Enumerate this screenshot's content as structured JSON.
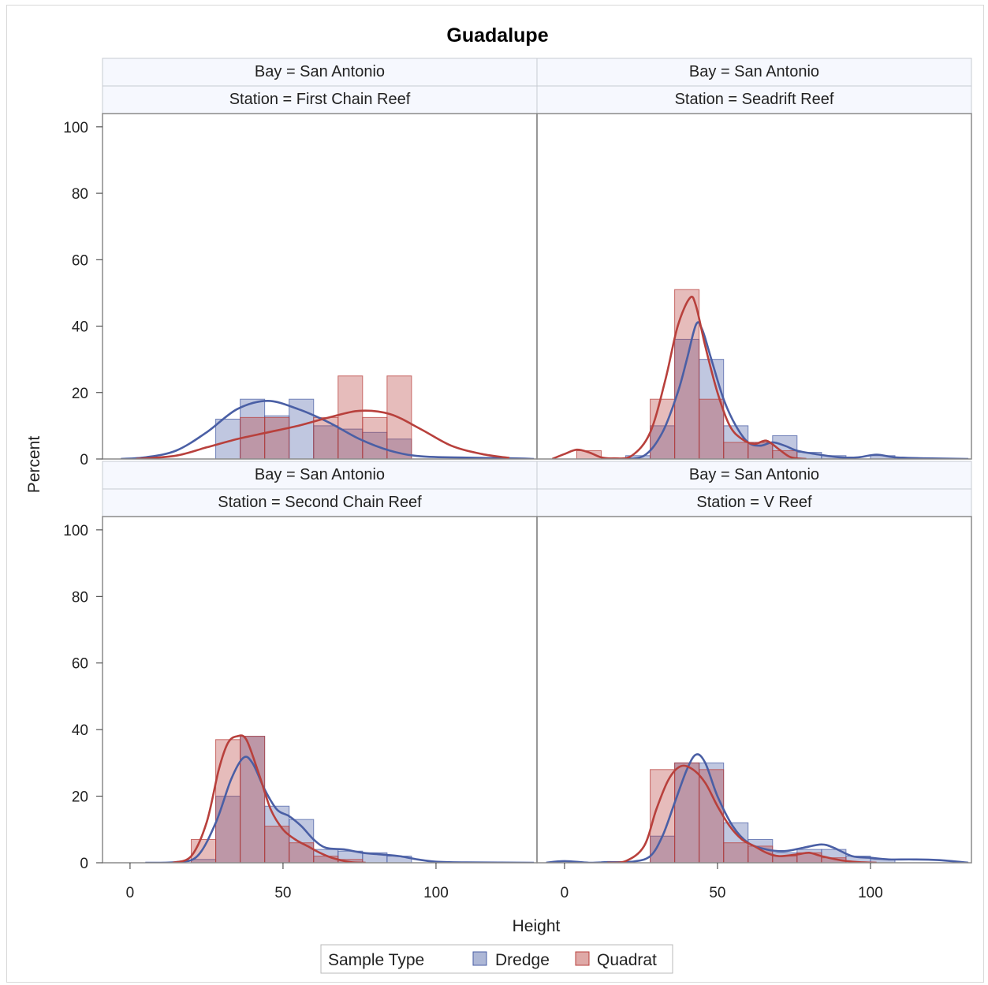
{
  "chart_data": {
    "type": "histogram-panel",
    "title": "Guadalupe",
    "xlabel": "Height",
    "ylabel": "Percent",
    "xlim": [
      -9,
      133
    ],
    "ylim": [
      0,
      104
    ],
    "xticks": [
      "0",
      "50",
      "100"
    ],
    "yticks": [
      "0",
      "20",
      "40",
      "60",
      "80",
      "100"
    ],
    "bin_width": 8,
    "legend": {
      "title": "Sample Type",
      "placement": "bottom",
      "items": [
        {
          "name": "Dredge",
          "color": "#4a5fa5"
        },
        {
          "name": "Quadrat",
          "color": "#b8403c"
        }
      ]
    },
    "panels": [
      {
        "bay": "Bay = San Antonio",
        "station": "Station = First Chain Reef",
        "dredge_bins": [
          [
            28,
            12
          ],
          [
            36,
            18
          ],
          [
            44,
            13
          ],
          [
            52,
            18
          ],
          [
            60,
            10
          ],
          [
            68,
            9
          ],
          [
            76,
            8
          ],
          [
            84,
            6
          ]
        ],
        "quadrat_bins": [
          [
            36,
            12.5
          ],
          [
            44,
            12.5
          ],
          [
            60,
            12.5
          ],
          [
            68,
            25
          ],
          [
            76,
            12.5
          ],
          [
            84,
            25
          ]
        ],
        "dredge_curve": [
          [
            -3,
            0
          ],
          [
            5,
            0.5
          ],
          [
            15,
            2.5
          ],
          [
            25,
            8
          ],
          [
            35,
            15
          ],
          [
            45,
            17.5
          ],
          [
            55,
            15
          ],
          [
            65,
            11
          ],
          [
            75,
            6
          ],
          [
            85,
            2.5
          ],
          [
            95,
            0.8
          ],
          [
            110,
            0.4
          ],
          [
            125,
            0.2
          ],
          [
            132,
            0
          ]
        ],
        "quadrat_curve": [
          [
            2,
            0
          ],
          [
            15,
            1
          ],
          [
            25,
            3.5
          ],
          [
            35,
            6
          ],
          [
            45,
            8
          ],
          [
            55,
            10
          ],
          [
            65,
            12.5
          ],
          [
            75,
            14.5
          ],
          [
            85,
            13.5
          ],
          [
            95,
            9
          ],
          [
            105,
            4
          ],
          [
            115,
            1.5
          ],
          [
            124,
            0.3
          ]
        ]
      },
      {
        "bay": "Bay = San Antonio",
        "station": "Station = Seadrift Reef",
        "dredge_bins": [
          [
            20,
            1
          ],
          [
            28,
            10
          ],
          [
            36,
            36
          ],
          [
            44,
            30
          ],
          [
            52,
            10
          ],
          [
            60,
            5
          ],
          [
            68,
            7
          ],
          [
            76,
            2
          ],
          [
            84,
            1
          ],
          [
            100,
            1
          ]
        ],
        "quadrat_bins": [
          [
            4,
            2.5
          ],
          [
            28,
            18
          ],
          [
            36,
            51
          ],
          [
            44,
            18
          ],
          [
            52,
            5
          ],
          [
            60,
            5
          ],
          [
            68,
            2.5
          ]
        ],
        "dredge_curve": [
          [
            18,
            0
          ],
          [
            26,
            1
          ],
          [
            32,
            8
          ],
          [
            37,
            20
          ],
          [
            40,
            30
          ],
          [
            43,
            40.5
          ],
          [
            45,
            39
          ],
          [
            48,
            30
          ],
          [
            52,
            18
          ],
          [
            56,
            10
          ],
          [
            60,
            5
          ],
          [
            64,
            4
          ],
          [
            68,
            5
          ],
          [
            72,
            4
          ],
          [
            76,
            2.5
          ],
          [
            82,
            1.5
          ],
          [
            90,
            0.5
          ],
          [
            96,
            0.5
          ],
          [
            102,
            1.3
          ],
          [
            108,
            0.5
          ],
          [
            118,
            0.2
          ],
          [
            132,
            0
          ]
        ],
        "quadrat_curve": [
          [
            -4,
            0
          ],
          [
            0,
            1.5
          ],
          [
            4,
            2.8
          ],
          [
            8,
            2
          ],
          [
            12,
            0.5
          ],
          [
            16,
            0.2
          ],
          [
            22,
            1
          ],
          [
            28,
            8
          ],
          [
            33,
            24
          ],
          [
            37,
            40
          ],
          [
            41,
            48.5
          ],
          [
            43,
            46
          ],
          [
            46,
            34
          ],
          [
            50,
            20
          ],
          [
            54,
            10
          ],
          [
            58,
            6
          ],
          [
            62,
            4.5
          ],
          [
            66,
            5.5
          ],
          [
            70,
            3
          ],
          [
            74,
            0.5
          ],
          [
            79,
            0
          ]
        ]
      },
      {
        "bay": "Bay = San Antonio",
        "station": "Station = Second Chain Reef",
        "dredge_bins": [
          [
            20,
            1
          ],
          [
            28,
            20
          ],
          [
            36,
            38
          ],
          [
            44,
            17
          ],
          [
            52,
            13
          ],
          [
            60,
            4
          ],
          [
            68,
            3.5
          ],
          [
            76,
            3
          ],
          [
            84,
            2
          ]
        ],
        "quadrat_bins": [
          [
            20,
            7
          ],
          [
            28,
            37
          ],
          [
            36,
            38
          ],
          [
            44,
            11
          ],
          [
            52,
            6
          ],
          [
            60,
            2
          ],
          [
            68,
            1
          ]
        ],
        "dredge_curve": [
          [
            5,
            0
          ],
          [
            15,
            0.2
          ],
          [
            22,
            2
          ],
          [
            28,
            12
          ],
          [
            33,
            25
          ],
          [
            37,
            31.5
          ],
          [
            40,
            30
          ],
          [
            44,
            22
          ],
          [
            48,
            16
          ],
          [
            52,
            14
          ],
          [
            56,
            11
          ],
          [
            60,
            7
          ],
          [
            64,
            4.5
          ],
          [
            70,
            4
          ],
          [
            76,
            3
          ],
          [
            82,
            2.5
          ],
          [
            88,
            2
          ],
          [
            94,
            1
          ],
          [
            100,
            0.3
          ],
          [
            110,
            0.1
          ],
          [
            132,
            0
          ]
        ],
        "quadrat_curve": [
          [
            14,
            0
          ],
          [
            20,
            2
          ],
          [
            25,
            12
          ],
          [
            29,
            28
          ],
          [
            32,
            36
          ],
          [
            35,
            38
          ],
          [
            38,
            37
          ],
          [
            42,
            27
          ],
          [
            46,
            16
          ],
          [
            50,
            10
          ],
          [
            54,
            7
          ],
          [
            58,
            5
          ],
          [
            62,
            3
          ],
          [
            66,
            1.5
          ],
          [
            72,
            0.2
          ],
          [
            77,
            0
          ]
        ]
      },
      {
        "bay": "Bay = San Antonio",
        "station": "Station = V Reef",
        "dredge_bins": [
          [
            28,
            8
          ],
          [
            36,
            30
          ],
          [
            44,
            30
          ],
          [
            52,
            12
          ],
          [
            60,
            7
          ],
          [
            68,
            3
          ],
          [
            76,
            4
          ],
          [
            84,
            4
          ],
          [
            92,
            2
          ],
          [
            100,
            1
          ]
        ],
        "quadrat_bins": [
          [
            28,
            28
          ],
          [
            36,
            30
          ],
          [
            44,
            28
          ],
          [
            52,
            6
          ],
          [
            60,
            5
          ],
          [
            68,
            2
          ],
          [
            76,
            3
          ],
          [
            84,
            1.5
          ]
        ],
        "dredge_curve": [
          [
            -6,
            0
          ],
          [
            0,
            0.5
          ],
          [
            8,
            0
          ],
          [
            14,
            0.2
          ],
          [
            22,
            0.3
          ],
          [
            28,
            2
          ],
          [
            32,
            8
          ],
          [
            36,
            18
          ],
          [
            40,
            28
          ],
          [
            43,
            32.5
          ],
          [
            46,
            30
          ],
          [
            50,
            20
          ],
          [
            55,
            11
          ],
          [
            60,
            6
          ],
          [
            66,
            4
          ],
          [
            72,
            3.5
          ],
          [
            78,
            4.5
          ],
          [
            84,
            5.5
          ],
          [
            88,
            4.5
          ],
          [
            94,
            2
          ],
          [
            100,
            1.5
          ],
          [
            106,
            1
          ],
          [
            114,
            1
          ],
          [
            122,
            0.8
          ],
          [
            132,
            0
          ]
        ],
        "quadrat_curve": [
          [
            14,
            0
          ],
          [
            20,
            0.5
          ],
          [
            26,
            5
          ],
          [
            30,
            16
          ],
          [
            34,
            25
          ],
          [
            38,
            29
          ],
          [
            42,
            28
          ],
          [
            46,
            24
          ],
          [
            50,
            17
          ],
          [
            54,
            11
          ],
          [
            58,
            7
          ],
          [
            62,
            5
          ],
          [
            66,
            3
          ],
          [
            70,
            2
          ],
          [
            76,
            2.5
          ],
          [
            80,
            3
          ],
          [
            84,
            2
          ],
          [
            90,
            0.8
          ],
          [
            96,
            0.2
          ],
          [
            102,
            0
          ]
        ]
      }
    ]
  }
}
